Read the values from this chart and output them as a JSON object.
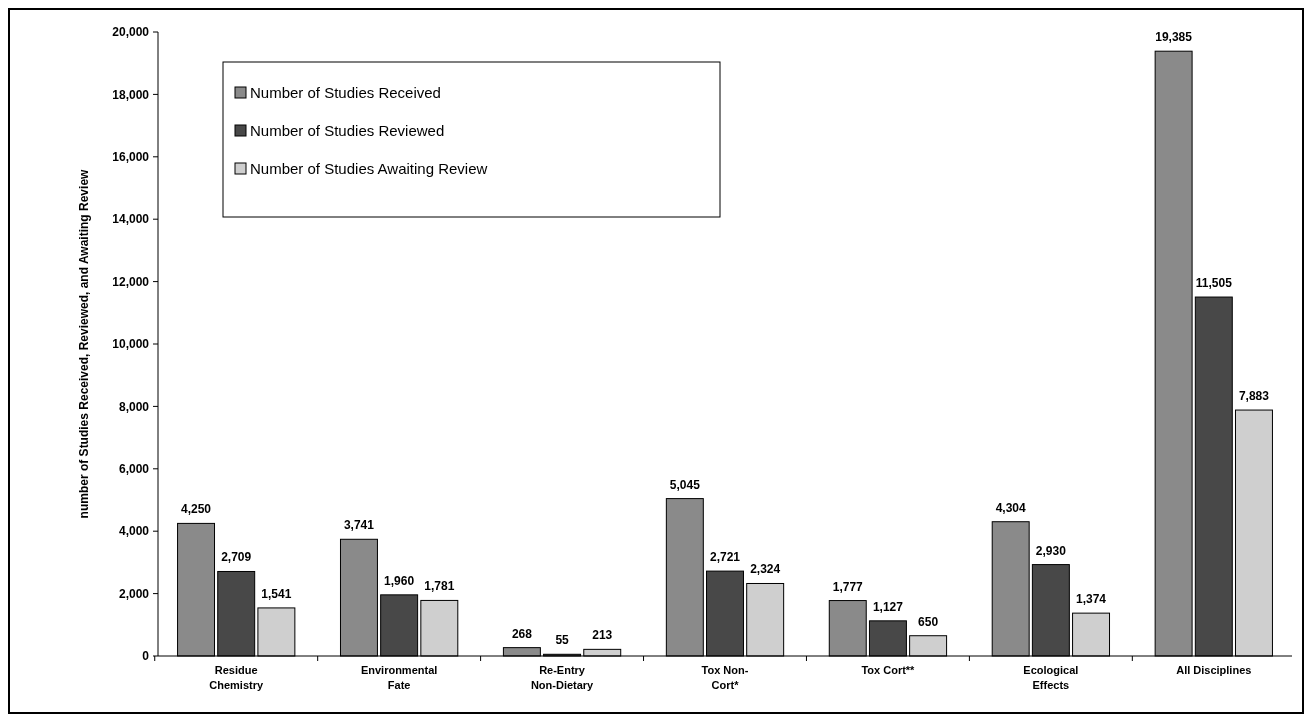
{
  "chart_data": {
    "type": "bar",
    "ylabel": "number of Studies Received, Reviewed, and Awaiting Review",
    "categories": [
      "Residue\nChemistry",
      "Environmental\nFate",
      "Re-Entry\nNon-Dietary",
      "Tox Non-\nCort*",
      "Tox Cort**",
      "Ecological\nEffects",
      "All Disciplines"
    ],
    "series": [
      {
        "name": "Number of Studies Received",
        "color": "#8a8a8a",
        "values": [
          4250,
          3741,
          268,
          5045,
          1777,
          4304,
          19385
        ],
        "value_labels": [
          "4,250",
          "3,741",
          "268",
          "5,045",
          "1,777",
          "4,304",
          "19,385"
        ]
      },
      {
        "name": "Number of Studies Reviewed",
        "color": "#484848",
        "values": [
          2709,
          1960,
          55,
          2721,
          1127,
          2930,
          11505
        ],
        "value_labels": [
          "2,709",
          "1,960",
          "55",
          "2,721",
          "1,127",
          "2,930",
          "11,505"
        ]
      },
      {
        "name": "Number of Studies Awaiting Review",
        "color": "#cfcfcf",
        "values": [
          1541,
          1781,
          213,
          2324,
          650,
          1374,
          7883
        ],
        "value_labels": [
          "1,541",
          "1,781",
          "213",
          "2,324",
          "650",
          "1,374",
          "7,883"
        ]
      }
    ],
    "ylim": [
      0,
      20000
    ],
    "yticks": [
      {
        "value": 0,
        "label": "0"
      },
      {
        "value": 2000,
        "label": "2,000"
      },
      {
        "value": 4000,
        "label": "4,000"
      },
      {
        "value": 6000,
        "label": "6,000"
      },
      {
        "value": 8000,
        "label": "8,000"
      },
      {
        "value": 10000,
        "label": "10,000"
      },
      {
        "value": 12000,
        "label": "12,000"
      },
      {
        "value": 14000,
        "label": "14,000"
      },
      {
        "value": 16000,
        "label": "16,000"
      },
      {
        "value": 18000,
        "label": "18,000"
      },
      {
        "value": 20000,
        "label": "20,000"
      }
    ],
    "legend": "top left",
    "grid": false
  }
}
